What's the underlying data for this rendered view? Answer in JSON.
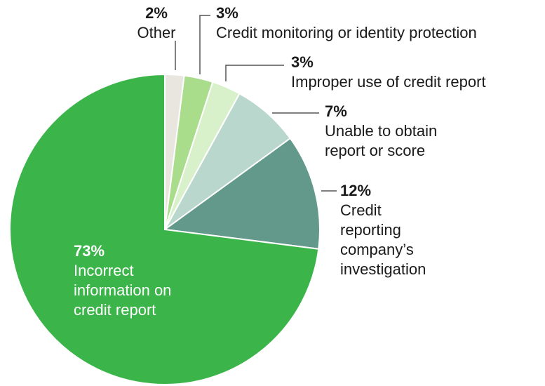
{
  "chart_data": {
    "type": "pie",
    "categories": [
      "Other",
      "Credit monitoring or identity protection",
      "Improper use of credit report",
      "Unable to obtain report or score",
      "Credit reporting company’s investigation",
      "Incorrect information on credit report"
    ],
    "values": [
      2,
      3,
      3,
      7,
      12,
      73
    ],
    "value_labels": [
      "2%",
      "3%",
      "3%",
      "7%",
      "12%",
      "73%"
    ],
    "colors": [
      "#e9e6e0",
      "#a9dc8b",
      "#d8f1ca",
      "#b9d7cc",
      "#62998a",
      "#3bb54a"
    ]
  }
}
